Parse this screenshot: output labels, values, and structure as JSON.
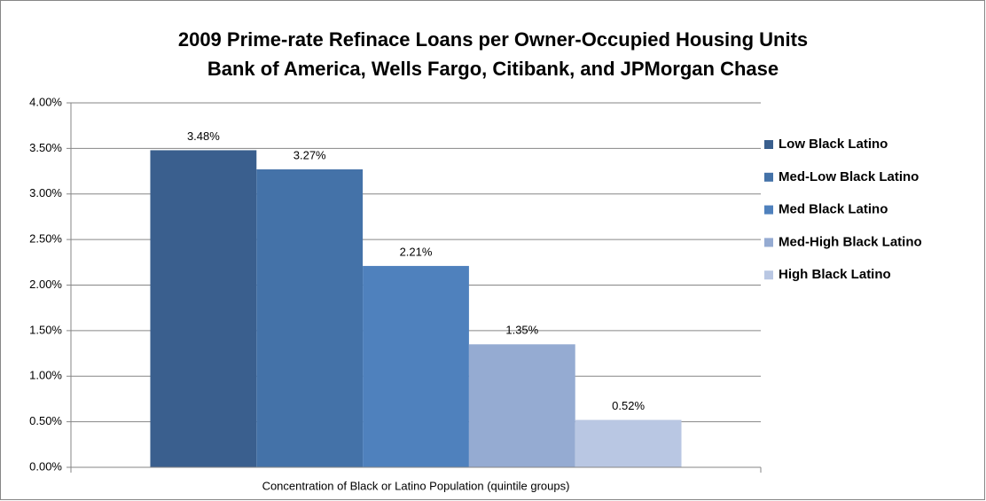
{
  "chart_data": {
    "type": "bar",
    "title": "2009 Prime-rate Refinace Loans per Owner-Occupied Housing Units",
    "subtitle": "Bank of America, Wells Fargo, Citibank, and JPMorgan Chase",
    "categories": [
      "Concentration of Black or Latino Population (quintile groups)"
    ],
    "series": [
      {
        "name": "Low Black Latino",
        "color": "#3a5f8e",
        "values": [
          3.48
        ],
        "value_labels": [
          "3.48%"
        ]
      },
      {
        "name": "Med-Low Black Latino",
        "color": "#4472a8",
        "values": [
          3.27
        ],
        "value_labels": [
          "3.27%"
        ]
      },
      {
        "name": "Med Black Latino",
        "color": "#4f81bd",
        "values": [
          2.21
        ],
        "value_labels": [
          "2.21%"
        ]
      },
      {
        "name": "Med-High Black Latino",
        "color": "#95abd2",
        "values": [
          1.35
        ],
        "value_labels": [
          "1.35%"
        ]
      },
      {
        "name": "High Black Latino",
        "color": "#b9c7e3",
        "values": [
          0.52
        ],
        "value_labels": [
          "0.52%"
        ]
      }
    ],
    "ylim": [
      0,
      4
    ],
    "yticks": [
      {
        "value": 0,
        "label": "0.00%"
      },
      {
        "value": 0.5,
        "label": "0.50%"
      },
      {
        "value": 1,
        "label": "1.00%"
      },
      {
        "value": 1.5,
        "label": "1.50%"
      },
      {
        "value": 2,
        "label": "2.00%"
      },
      {
        "value": 2.5,
        "label": "2.50%"
      },
      {
        "value": 3,
        "label": "3.00%"
      },
      {
        "value": 3.5,
        "label": "3.50%"
      },
      {
        "value": 4,
        "label": "4.00%"
      }
    ],
    "grid": true,
    "legend": "right"
  }
}
